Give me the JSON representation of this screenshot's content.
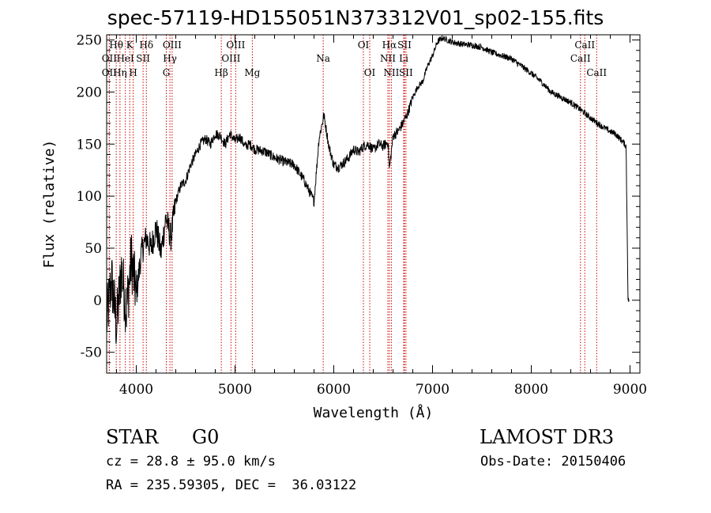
{
  "chart_data": {
    "type": "line",
    "title": "spec-57119-HD155051N373312V01_sp02-155.fits",
    "xlabel": "Wavelength (Å)",
    "ylabel": "Flux (relative)",
    "xlim": [
      3700,
      9100
    ],
    "ylim": [
      -70,
      255
    ],
    "xticks": [
      4000,
      5000,
      6000,
      7000,
      8000,
      9000
    ],
    "yticks": [
      -50,
      0,
      50,
      100,
      150,
      200,
      250
    ],
    "grid": false,
    "line_color": "#000000",
    "marker_color": "#cc0000",
    "spectrum": {
      "x": [
        3700,
        3750,
        3800,
        3850,
        3900,
        3950,
        4000,
        4050,
        4100,
        4150,
        4200,
        4250,
        4300,
        4350,
        4400,
        4450,
        4500,
        4550,
        4600,
        4650,
        4700,
        4750,
        4800,
        4850,
        4900,
        4950,
        5000,
        5050,
        5100,
        5150,
        5200,
        5300,
        5400,
        5500,
        5600,
        5700,
        5750,
        5800,
        5850,
        5900,
        5950,
        6000,
        6050,
        6100,
        6150,
        6200,
        6250,
        6300,
        6350,
        6400,
        6450,
        6500,
        6550,
        6563,
        6600,
        6650,
        6700,
        6750,
        6800,
        6850,
        6900,
        6950,
        7000,
        7050,
        7100,
        7200,
        7300,
        7400,
        7500,
        7600,
        7700,
        7800,
        7900,
        8000,
        8100,
        8200,
        8300,
        8400,
        8500,
        8600,
        8700,
        8800,
        8850,
        8900,
        8930,
        8960,
        8980,
        8990
      ],
      "y": [
        -20,
        20,
        -25,
        30,
        -10,
        40,
        5,
        45,
        60,
        50,
        70,
        45,
        80,
        60,
        95,
        110,
        115,
        130,
        140,
        150,
        155,
        150,
        160,
        158,
        150,
        160,
        153,
        157,
        148,
        150,
        145,
        143,
        137,
        133,
        130,
        115,
        105,
        95,
        155,
        178,
        148,
        130,
        128,
        132,
        137,
        145,
        142,
        148,
        150,
        144,
        150,
        148,
        152,
        125,
        158,
        162,
        170,
        180,
        195,
        205,
        210,
        225,
        235,
        248,
        252,
        248,
        246,
        245,
        243,
        238,
        235,
        232,
        225,
        218,
        210,
        200,
        195,
        190,
        183,
        175,
        168,
        162,
        160,
        155,
        152,
        148,
        0,
        0
      ]
    },
    "lines": [
      {
        "label": "Hθ",
        "x": 3797,
        "row": 1
      },
      {
        "label": "OII",
        "x": 3727,
        "row": 2
      },
      {
        "label": "OII",
        "x": 3727,
        "row": 3
      },
      {
        "label": "Hη",
        "x": 3835,
        "row": 3
      },
      {
        "label": "HeI",
        "x": 3889,
        "row": 2
      },
      {
        "label": "K",
        "x": 3934,
        "row": 1
      },
      {
        "label": "H",
        "x": 3969,
        "row": 3
      },
      {
        "label": "SII",
        "x": 4069,
        "row": 2
      },
      {
        "label": "Hδ",
        "x": 4102,
        "row": 1
      },
      {
        "label": "G",
        "x": 4304,
        "row": 3
      },
      {
        "label": "Hγ",
        "x": 4341,
        "row": 2
      },
      {
        "label": "OIII",
        "x": 4363,
        "row": 1
      },
      {
        "label": "Hβ",
        "x": 4861,
        "row": 3
      },
      {
        "label": "OIII",
        "x": 5007,
        "row": 1
      },
      {
        "label": "OIII",
        "x": 4959,
        "row": 2
      },
      {
        "label": "Mg",
        "x": 5175,
        "row": 3
      },
      {
        "label": "Na",
        "x": 5893,
        "row": 2
      },
      {
        "label": "OI",
        "x": 6300,
        "row": 1
      },
      {
        "label": "OI",
        "x": 6364,
        "row": 3
      },
      {
        "label": "Hα",
        "x": 6563,
        "row": 1
      },
      {
        "label": "NII",
        "x": 6548,
        "row": 2
      },
      {
        "label": "NII",
        "x": 6583,
        "row": 3
      },
      {
        "label": "SII",
        "x": 6716,
        "row": 1
      },
      {
        "label": "Li",
        "x": 6708,
        "row": 2
      },
      {
        "label": "SII",
        "x": 6731,
        "row": 3
      },
      {
        "label": "CaII",
        "x": 8542,
        "row": 1
      },
      {
        "label": "CaII",
        "x": 8498,
        "row": 2
      },
      {
        "label": "CaII",
        "x": 8662,
        "row": 3
      }
    ]
  },
  "info": {
    "class_label": "STAR",
    "subclass": "G0",
    "survey": "LAMOST DR3",
    "redshift": "cz = 28.8 ± 95.0 km/s",
    "obs_date": "Obs-Date: 20150406",
    "coords": "RA = 235.59305, DEC =  36.03122"
  }
}
